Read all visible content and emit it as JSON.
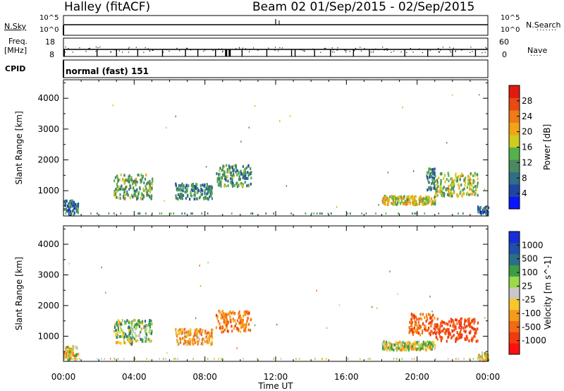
{
  "header": {
    "station": "Halley (fitACF)",
    "beam_date": "Beam 02  01/Sep/2015 - 02/Sep/2015"
  },
  "strips": {
    "nsky_label": "N.Sky",
    "nsky_ticks": [
      "10^5",
      "10^0"
    ],
    "nsearch_label": "N.Search",
    "nsearch_ticks": [
      "10^5",
      "10^0"
    ],
    "freq_label_1": "Freq.",
    "freq_label_2": "[MHz]",
    "freq_ticks": [
      "18",
      "8"
    ],
    "nave_label": "Nave",
    "nave_ticks": [
      "60",
      "0"
    ],
    "cpid_label": "CPID",
    "cpid_value": "normal (fast) 151"
  },
  "colors": {
    "power_scale": [
      "#0a14ff",
      "#1f45a3",
      "#2e6e86",
      "#4a8a5d",
      "#55b24a",
      "#cfcb1f",
      "#f0a418",
      "#f07a16",
      "#e84a12",
      "#e11a0f"
    ],
    "velocity_scale": [
      "#ff1010",
      "#f03a10",
      "#f26a14",
      "#f59a1a",
      "#f7c62b",
      "#c8c8c8",
      "#9ad94a",
      "#3b9e44",
      "#2c6e88",
      "#1f4fa8",
      "#1a2cd8"
    ]
  },
  "chart_data": [
    {
      "type": "heatmap",
      "title": "",
      "xlabel": "Time UT",
      "ylabel": "Slant Range [km]",
      "x_ticks": [
        "00:00",
        "04:00",
        "08:00",
        "12:00",
        "16:00",
        "20:00",
        "00:00"
      ],
      "y_ticks": [
        1000,
        2000,
        3000,
        4000
      ],
      "ylim": [
        180,
        4600
      ],
      "colorbar_label": "Power [dB]",
      "colorbar_ticks": [
        4,
        8,
        12,
        16,
        20,
        24,
        28
      ],
      "colorbar_range": [
        0,
        32
      ],
      "echo_regions": [
        {
          "t": [
            0.0,
            0.8
          ],
          "range": [
            180,
            650
          ],
          "value": 8
        },
        {
          "t": [
            2.8,
            5.0
          ],
          "range": [
            700,
            1500
          ],
          "value": 14
        },
        {
          "t": [
            6.3,
            8.4
          ],
          "range": [
            700,
            1200
          ],
          "value": 10
        },
        {
          "t": [
            8.6,
            10.6
          ],
          "range": [
            1100,
            1800
          ],
          "value": 11
        },
        {
          "t": [
            18.0,
            21.0
          ],
          "range": [
            520,
            800
          ],
          "value": 18
        },
        {
          "t": [
            20.5,
            21.0
          ],
          "range": [
            1000,
            1700
          ],
          "value": 9
        },
        {
          "t": [
            21.0,
            23.4
          ],
          "range": [
            800,
            1550
          ],
          "value": 16
        },
        {
          "t": [
            23.4,
            24.0
          ],
          "range": [
            180,
            450
          ],
          "value": 6
        }
      ]
    },
    {
      "type": "heatmap",
      "title": "",
      "xlabel": "Time UT",
      "ylabel": "Slant Range [km]",
      "x_ticks": [
        "00:00",
        "04:00",
        "08:00",
        "12:00",
        "16:00",
        "20:00",
        "00:00"
      ],
      "y_ticks": [
        1000,
        2000,
        3000,
        4000
      ],
      "ylim": [
        180,
        4600
      ],
      "colorbar_label": "Velocity [m s^-1]",
      "colorbar_ticks": [
        "1000",
        "500",
        "100",
        "25",
        "-25",
        "-100",
        "-500",
        "-1000"
      ],
      "echo_regions": [
        {
          "t": [
            0.0,
            0.8
          ],
          "range": [
            180,
            650
          ],
          "value": -50
        },
        {
          "t": [
            2.8,
            5.0
          ],
          "range": [
            700,
            1500
          ],
          "value": 80
        },
        {
          "t": [
            6.3,
            8.4
          ],
          "range": [
            700,
            1200
          ],
          "value": -200
        },
        {
          "t": [
            8.6,
            10.6
          ],
          "range": [
            1100,
            1800
          ],
          "value": -300
        },
        {
          "t": [
            18.0,
            21.0
          ],
          "range": [
            520,
            800
          ],
          "value": 0
        },
        {
          "t": [
            19.5,
            21.0
          ],
          "range": [
            1000,
            1700
          ],
          "value": -400
        },
        {
          "t": [
            21.0,
            23.4
          ],
          "range": [
            800,
            1550
          ],
          "value": -600
        },
        {
          "t": [
            23.4,
            24.0
          ],
          "range": [
            180,
            450
          ],
          "value": -100
        }
      ]
    }
  ]
}
